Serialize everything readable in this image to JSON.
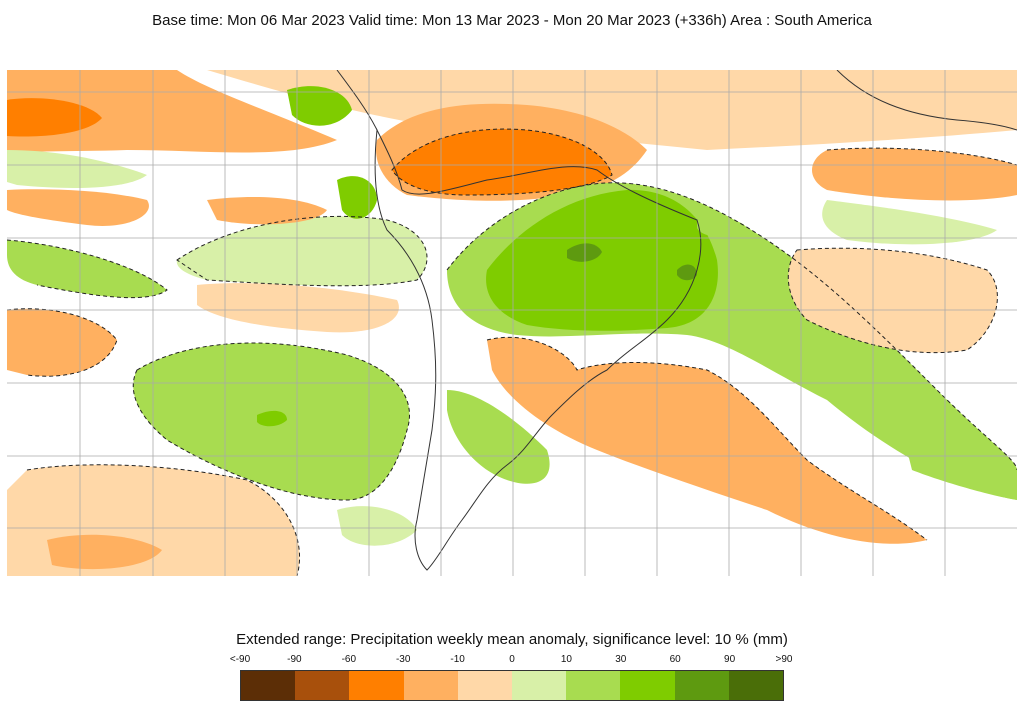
{
  "header": {
    "title": "Base time: Mon 06 Mar 2023 Valid time: Mon 13 Mar 2023 - Mon 20 Mar 2023 (+336h) Area : South America"
  },
  "map": {
    "area": "South America",
    "product": "Precipitation weekly mean anomaly",
    "dashed_contour": "significance level: 10 %"
  },
  "legend": {
    "title": "Extended range: Precipitation weekly mean anomaly, significance level: 10 % (mm)",
    "tick_labels": [
      "<-90",
      "-90",
      "-60",
      "-30",
      "-10",
      "0",
      "10",
      "30",
      "60",
      "90",
      ">90"
    ],
    "colors": [
      "#5c2e06",
      "#a8500c",
      "#ff7f00",
      "#ffb060",
      "#ffd8a8",
      "#d8f0a8",
      "#a8dc50",
      "#7fcc00",
      "#5e9a10",
      "#4a6e08"
    ]
  }
}
